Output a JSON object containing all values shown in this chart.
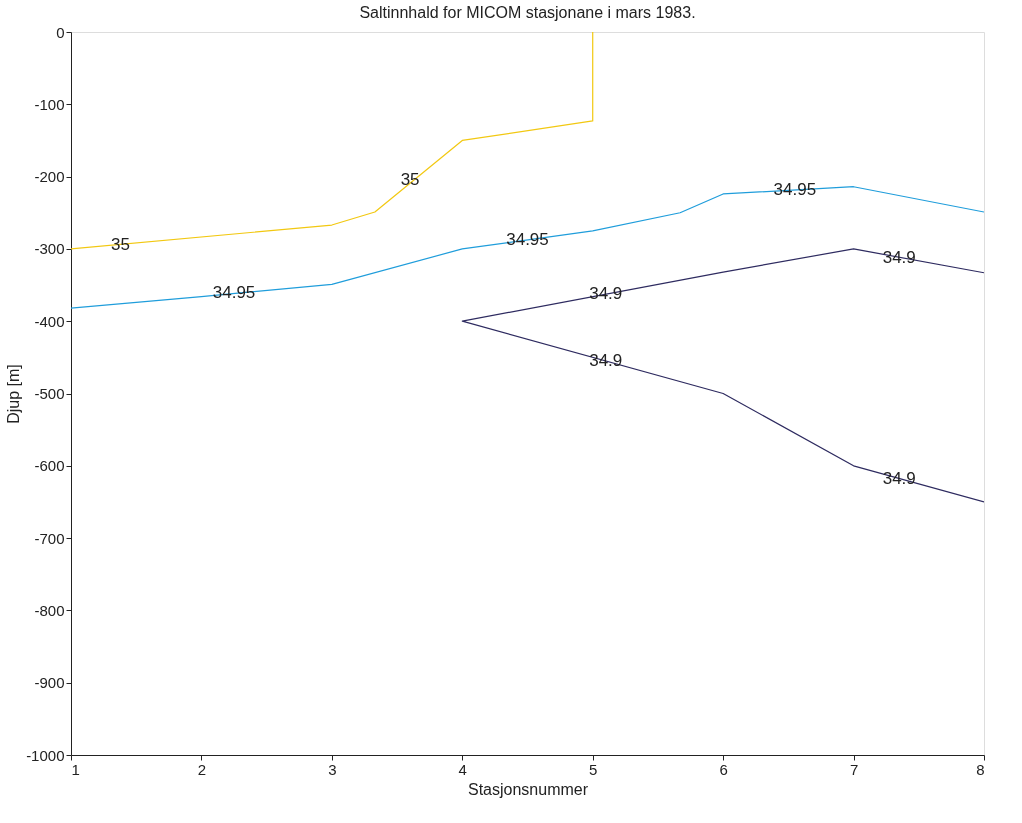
{
  "chart_data": {
    "type": "line",
    "title": "Saltinnhald for MICOM stasjonane i mars 1983.",
    "xlabel": "Stasjonsnummer",
    "ylabel": "Djup [m]",
    "series": [
      {
        "color": "#f2c811",
        "x": [
          1,
          3,
          3.33,
          4,
          5,
          5
        ],
        "values": [
          -300,
          -267,
          -249,
          -150,
          -123,
          0
        ]
      },
      {
        "color": "#1f9ddb",
        "x": [
          1,
          2,
          3,
          4,
          5,
          5.67,
          6,
          7,
          8
        ],
        "values": [
          -382,
          -366,
          -349,
          -300,
          -275,
          -250,
          -224,
          -214,
          -249
        ]
      },
      {
        "color": "#2e2b60",
        "x": [
          8,
          7,
          6,
          4,
          6,
          7,
          8
        ],
        "values": [
          -333,
          -300,
          -332,
          -400,
          -500,
          -600,
          -650
        ]
      }
    ],
    "annotations": [
      {
        "text": "35",
        "x": 1.38,
        "y": -295
      },
      {
        "text": "35",
        "x": 3.6,
        "y": -205
      },
      {
        "text": "34.95",
        "x": 2.25,
        "y": -361
      },
      {
        "text": "34.95",
        "x": 4.5,
        "y": -288
      },
      {
        "text": "34.95",
        "x": 6.55,
        "y": -218
      },
      {
        "text": "34.9",
        "x": 5.1,
        "y": -363
      },
      {
        "text": "34.9",
        "x": 7.35,
        "y": -312
      },
      {
        "text": "34.9",
        "x": 5.1,
        "y": -455
      },
      {
        "text": "34.9",
        "x": 7.35,
        "y": -618
      }
    ],
    "xlim": [
      1,
      8
    ],
    "xticks": [
      1,
      2,
      3,
      4,
      5,
      6,
      7,
      8
    ],
    "ylim": [
      -1000,
      0
    ],
    "yticks": [
      -1000,
      -900,
      -800,
      -700,
      -600,
      -500,
      -400,
      -300,
      -200,
      -100,
      0
    ],
    "grid": false,
    "legend": false,
    "marker": "none",
    "line_style": "solid"
  }
}
